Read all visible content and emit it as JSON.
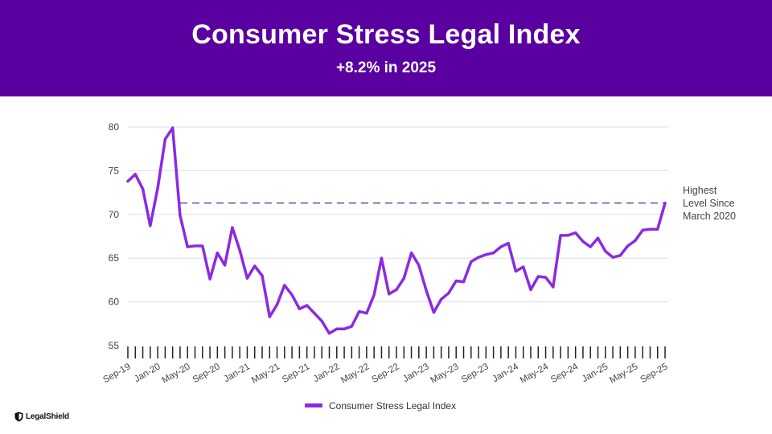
{
  "header": {
    "title": "Consumer Stress Legal Index",
    "subtitle": "+8.2% in 2025"
  },
  "annotation": {
    "lines": [
      "Highest",
      "Level Since",
      "March 2020"
    ]
  },
  "logo": {
    "text": "LegalShield",
    "icon": "shield-icon"
  },
  "colors": {
    "banner": "#5a00a0",
    "series": "#8a2be2",
    "reference_line": "#4b2a8a",
    "grid": "#dddddd"
  },
  "chart_data": {
    "type": "line",
    "title": "Consumer Stress Legal Index",
    "subtitle": "+8.2% in 2025",
    "xlabel": "",
    "ylabel": "",
    "ylim": [
      55,
      80
    ],
    "yticks": [
      55,
      60,
      65,
      70,
      75,
      80
    ],
    "grid": true,
    "legend": {
      "position": "bottom",
      "entries": [
        "Consumer Stress Legal Index"
      ]
    },
    "x": [
      "Sep-19",
      "Oct-19",
      "Nov-19",
      "Dec-19",
      "Jan-20",
      "Feb-20",
      "Mar-20",
      "Apr-20",
      "May-20",
      "Jun-20",
      "Jul-20",
      "Aug-20",
      "Sep-20",
      "Oct-20",
      "Nov-20",
      "Dec-20",
      "Jan-21",
      "Feb-21",
      "Mar-21",
      "Apr-21",
      "May-21",
      "Jun-21",
      "Jul-21",
      "Aug-21",
      "Sep-21",
      "Oct-21",
      "Nov-21",
      "Dec-21",
      "Jan-22",
      "Feb-22",
      "Mar-22",
      "Apr-22",
      "May-22",
      "Jun-22",
      "Jul-22",
      "Aug-22",
      "Sep-22",
      "Oct-22",
      "Nov-22",
      "Dec-22",
      "Jan-23",
      "Feb-23",
      "Mar-23",
      "Apr-23",
      "May-23",
      "Jun-23",
      "Jul-23",
      "Aug-23",
      "Sep-23",
      "Oct-23",
      "Nov-23",
      "Dec-23",
      "Jan-24",
      "Feb-24",
      "Mar-24",
      "Apr-24",
      "May-24",
      "Jun-24",
      "Jul-24",
      "Aug-24",
      "Sep-24",
      "Oct-24",
      "Nov-24",
      "Dec-24",
      "Jan-25",
      "Feb-25",
      "Mar-25",
      "Apr-25",
      "May-25",
      "Jun-25",
      "Jul-25",
      "Aug-25",
      "Sep-25"
    ],
    "tick_labels": [
      "Sep-19",
      "Jan-20",
      "May-20",
      "Sep-20",
      "Jan-21",
      "May-21",
      "Sep-21",
      "Jan-22",
      "May-22",
      "Sep-22",
      "Jan-23",
      "May-23",
      "Sep-23",
      "Jan-24",
      "May-24",
      "Sep-24",
      "Jan-25",
      "May-25",
      "Sep-25"
    ],
    "series": [
      {
        "name": "Consumer Stress Legal Index",
        "values": [
          73.8,
          74.6,
          72.9,
          68.7,
          73.0,
          78.6,
          79.9,
          69.9,
          66.3,
          66.4,
          66.4,
          62.6,
          65.6,
          64.2,
          68.5,
          65.9,
          62.7,
          64.1,
          63.0,
          58.3,
          59.7,
          61.9,
          60.8,
          59.2,
          59.6,
          58.7,
          57.8,
          56.4,
          56.9,
          56.9,
          57.2,
          58.9,
          58.7,
          60.8,
          65.0,
          60.9,
          61.4,
          62.7,
          65.6,
          64.2,
          61.3,
          58.8,
          60.3,
          61.0,
          62.4,
          62.3,
          64.6,
          65.1,
          65.4,
          65.6,
          66.3,
          66.7,
          63.5,
          64.0,
          61.4,
          62.9,
          62.8,
          61.7,
          67.6,
          67.6,
          67.9,
          66.9,
          66.3,
          67.3,
          65.8,
          65.1,
          65.3,
          66.4,
          67.0,
          68.2,
          68.3,
          68.3,
          71.3
        ]
      }
    ],
    "reference_line": {
      "value": 71.3,
      "style": "dashed",
      "from": "Apr-20",
      "to": "Sep-25",
      "label": "Highest Level Since March 2020"
    }
  }
}
